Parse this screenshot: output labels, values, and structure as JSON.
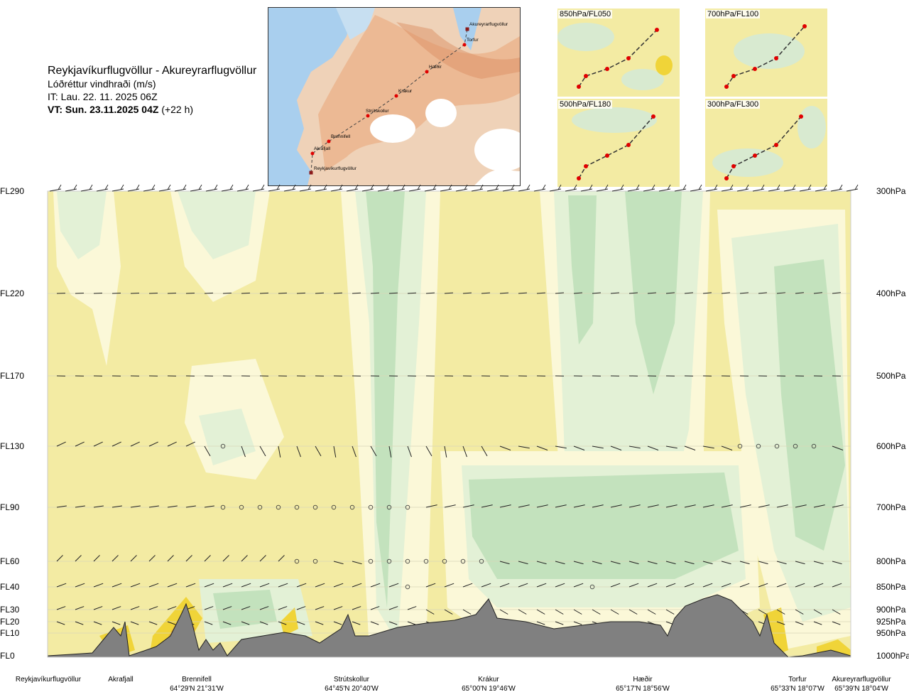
{
  "header": {
    "route": "Reykjavíkurflugvöllur - Akureyrarflugvöllur",
    "parameter": "Lóðréttur vindhraði (m/s)",
    "issue_time": "IT: Lau. 22. 11. 2025 06Z",
    "valid_time_bold": "VT: Sun. 23.11.2025 04Z",
    "valid_time_offset": "(+22 h)"
  },
  "route_map": {
    "waypoints": [
      {
        "name": "Reykjavíkurflugvöllur"
      },
      {
        "name": "Akrafjall"
      },
      {
        "name": "Brennifell"
      },
      {
        "name": "Strútskollur"
      },
      {
        "name": "Krákur"
      },
      {
        "name": "Hæðir"
      },
      {
        "name": "Torfur"
      },
      {
        "name": "Akureyrarflugvöllur"
      }
    ]
  },
  "mini_maps": [
    {
      "label": "850hPa/FL050"
    },
    {
      "label": "700hPa/FL100"
    },
    {
      "label": "500hPa/FL180"
    },
    {
      "label": "300hPa/FL300"
    }
  ],
  "chart_data": {
    "type": "heatmap",
    "title": "Lóðréttur vindhraði (m/s)",
    "levels": [
      {
        "fl": "FL290",
        "hpa": "300hPa"
      },
      {
        "fl": "FL220",
        "hpa": "400hPa"
      },
      {
        "fl": "FL170",
        "hpa": "500hPa"
      },
      {
        "fl": "FL130",
        "hpa": "600hPa"
      },
      {
        "fl": "FL90",
        "hpa": "700hPa"
      },
      {
        "fl": "FL60",
        "hpa": "800hPa"
      },
      {
        "fl": "FL40",
        "hpa": "850hPa"
      },
      {
        "fl": "FL30",
        "hpa": "900hPa"
      },
      {
        "fl": "FL20",
        "hpa": "925hPa"
      },
      {
        "fl": "FL10",
        "hpa": "950hPa"
      },
      {
        "fl": "FL0",
        "hpa": "1000hPa"
      }
    ],
    "locations": [
      {
        "name": "Reykjavíkurflugvöllur",
        "coord": ""
      },
      {
        "name": "Akrafjall",
        "coord": ""
      },
      {
        "name": "Brennifell",
        "coord": "64°29'N 21°31'W"
      },
      {
        "name": "Strútskollur",
        "coord": "64°45'N 20°40'W"
      },
      {
        "name": "Krákur",
        "coord": "65°00'N 19°46'W"
      },
      {
        "name": "Hæðir",
        "coord": "65°17'N 18°56'W"
      },
      {
        "name": "Torfur",
        "coord": "65°33'N 18°07'W"
      },
      {
        "name": "Akureyrarflugvöllur",
        "coord": "65°39'N 18°04'W"
      }
    ],
    "colors": {
      "background": "#f3eba3",
      "downdraft_light": "#fbf8d8",
      "updraft_light": "#e3f1d6",
      "updraft": "#c3e2bd",
      "strong_up_yellow": "#f0d438",
      "strong_up_orange": "#d9a13a",
      "strong_brown": "#9a5a22",
      "terrain": "#808080"
    }
  }
}
